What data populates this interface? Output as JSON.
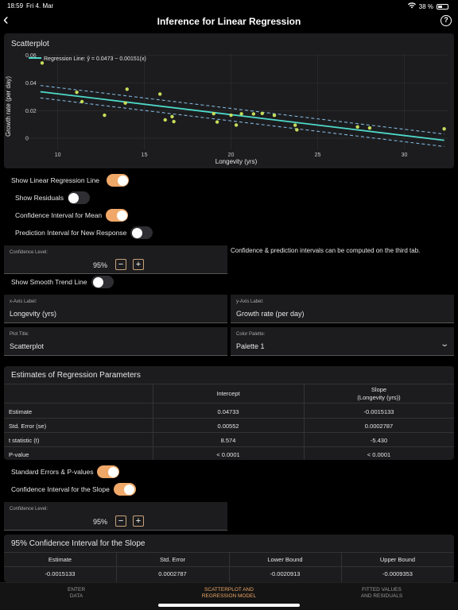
{
  "status": {
    "time": "18:59",
    "date": "Fri 4. Mar",
    "battery": "38 %"
  },
  "nav": {
    "title": "Inference for Linear Regression"
  },
  "plot": {
    "card_title": "Scatterplot",
    "legend": "Regression Line: ŷ = 0.0473 − 0.00151(x)",
    "colors": {
      "points": "#c6dd5a",
      "line": "#4ed9c9",
      "band": "#7fb4dd"
    }
  },
  "chart_data": {
    "type": "scatter",
    "title": "Scatterplot",
    "xlabel": "Longevity (yrs)",
    "ylabel": "Growth rate (per day)",
    "xlim": [
      8,
      32.5
    ],
    "ylim": [
      -0.008,
      0.061
    ],
    "x_ticks": [
      10,
      15,
      20,
      25,
      30
    ],
    "y_ticks": [
      0,
      0.02,
      0.04,
      0.06
    ],
    "x_tick_labels": [
      "10",
      "15",
      "20",
      "25",
      "30"
    ],
    "y_tick_labels": [
      "0",
      "0.02",
      "0.04",
      "0.06"
    ],
    "points": [
      [
        9.1,
        0.0545
      ],
      [
        11.1,
        0.0333
      ],
      [
        11.4,
        0.0265
      ],
      [
        12.7,
        0.0167
      ],
      [
        13.9,
        0.0255
      ],
      [
        14.0,
        0.0355
      ],
      [
        15.9,
        0.032
      ],
      [
        16.2,
        0.0133
      ],
      [
        16.6,
        0.0157
      ],
      [
        16.7,
        0.0121
      ],
      [
        19.0,
        0.0178
      ],
      [
        19.2,
        0.0118
      ],
      [
        20.0,
        0.0167
      ],
      [
        20.3,
        0.0096
      ],
      [
        20.6,
        0.0177
      ],
      [
        21.3,
        0.0176
      ],
      [
        21.8,
        0.018
      ],
      [
        22.5,
        0.0166
      ],
      [
        23.7,
        0.0095
      ],
      [
        23.8,
        0.0061
      ],
      [
        27.3,
        0.0082
      ],
      [
        28.0,
        0.0075
      ],
      [
        32.3,
        0.0068
      ]
    ],
    "regression": {
      "intercept": 0.0473,
      "slope": -0.00151
    },
    "band_halfwidth": 0.0045,
    "grid": true,
    "legend_position": "top-left"
  },
  "toggles": {
    "show_regression": {
      "label": "Show Linear Regression Line",
      "on": true
    },
    "show_residuals": {
      "label": "Show Residuals",
      "on": false
    },
    "ci_mean": {
      "label": "Confidence Interval for Mean",
      "on": true
    },
    "pi_new": {
      "label": "Prediction Interval for New Response",
      "on": false
    },
    "smooth": {
      "label": "Show Smooth Trend Line",
      "on": false
    },
    "std_errors": {
      "label": "Standard Errors & P-values",
      "on": true
    },
    "ci_slope": {
      "label": "Confidence Interval for the Slope",
      "on": true
    }
  },
  "confidence1": {
    "label": "Confidence Level:",
    "value": "95%",
    "minus": "−",
    "plus": "+"
  },
  "note": "Confidence & prediction intervals can be computed on the third tab.",
  "fields": {
    "x_axis": {
      "label": "x-Axis Label:",
      "value": "Longevity (yrs)"
    },
    "y_axis": {
      "label": "y-Axis Label:",
      "value": "Growth rate (per day)"
    },
    "plot_title": {
      "label": "Plot Title:",
      "value": "Scatterplot"
    },
    "palette": {
      "label": "Color Palette:",
      "value": "Palette 1"
    }
  },
  "estimates": {
    "title": "Estimates of Regression Parameters",
    "col_intercept": "Intercept",
    "col_slope_1": "Slope",
    "col_slope_2": "(Longevity (yrs))",
    "rows": [
      {
        "name": "Estimate",
        "intercept": "0.04733",
        "slope": "-0.0015133"
      },
      {
        "name": "Std. Error (se)",
        "intercept": "0.00552",
        "slope": "0.0002787"
      },
      {
        "name": "t statistic (t)",
        "intercept": "8.574",
        "slope": "-5.430"
      },
      {
        "name": "P-value",
        "intercept": "< 0.0001",
        "slope": "< 0.0001"
      }
    ]
  },
  "confidence2": {
    "label": "Confidence Level:",
    "value": "95%",
    "minus": "−",
    "plus": "+"
  },
  "ci_slope_table": {
    "title": "95% Confidence Interval for the Slope",
    "headers": [
      "Estimate",
      "Std. Error",
      "Lower Bound",
      "Upper Bound"
    ],
    "values": [
      "-0.0015133",
      "0.0002787",
      "-0.0020913",
      "-0.0009353"
    ]
  },
  "tabs": [
    {
      "line1": "ENTER",
      "line2": "DATA",
      "active": false
    },
    {
      "line1": "SCATTERPLOT AND",
      "line2": "REGRESSION MODEL",
      "active": true
    },
    {
      "line1": "FITTED VALUES",
      "line2": "AND RESIDUALS",
      "active": false
    }
  ]
}
